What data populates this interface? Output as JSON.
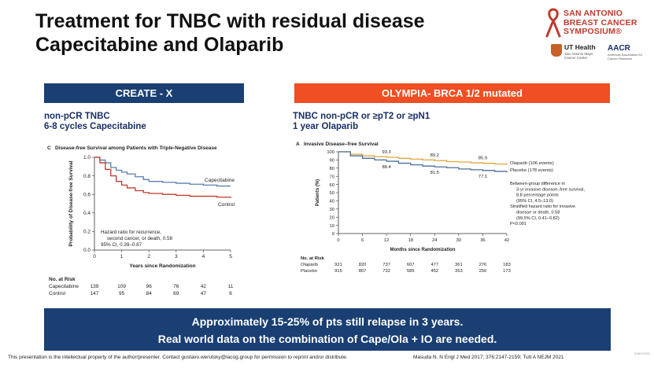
{
  "slide": {
    "title_line1": "Treatment for TNBC with residual disease",
    "title_line2": "Capecitabine and Olaparib"
  },
  "logo": {
    "line1": "SAN ANTONIO",
    "line2": "BREAST CANCER",
    "line3": "SYMPOSIUM®",
    "ut_name": "UT Health",
    "ut_sub": "San Antonio Mays Cancer Center",
    "aacr_name": "AACR",
    "aacr_sub": "American Association for Cancer Research",
    "colors": {
      "sabcs": "#c0392b",
      "ut": "#c8602a",
      "aacr": "#1b2a6b"
    }
  },
  "left_panel": {
    "header": "CREATE - X",
    "sub1": "non-pCR TNBC",
    "sub2": "6-8 cycles Capecitabine",
    "color": "#1a3f73"
  },
  "right_panel": {
    "header": "OLYMPIA- BRCA 1/2 mutated",
    "sub1": "TNBC non-pCR or ≥pT2 or ≥pN1",
    "sub2": "1 year Olaparib",
    "color": "#f04e23"
  },
  "chart_data": [
    {
      "type": "line",
      "panel_letter": "C",
      "title": "Disease-free Survival among Patients with Triple-Negative Disease",
      "xlabel": "Years since Randomization",
      "ylabel": "Probability of Disease-free Survival",
      "xlim": [
        0,
        5
      ],
      "ylim": [
        0,
        1.0
      ],
      "xticks": [
        "0",
        "1",
        "2",
        "3",
        "4",
        "5"
      ],
      "yticks": [
        "0.0",
        "0.2",
        "0.4",
        "0.6",
        "0.8",
        "1.0"
      ],
      "series": [
        {
          "name": "Capecitabine",
          "label": "Capecitabine",
          "color": "#5a7fae",
          "x": [
            0,
            0.2,
            0.4,
            0.6,
            0.8,
            1.0,
            1.2,
            1.5,
            1.8,
            2.0,
            2.5,
            3.0,
            3.5,
            4.0,
            4.5,
            5.0
          ],
          "y": [
            1.0,
            0.97,
            0.94,
            0.89,
            0.86,
            0.84,
            0.82,
            0.79,
            0.76,
            0.74,
            0.73,
            0.72,
            0.71,
            0.7,
            0.69,
            0.69
          ]
        },
        {
          "name": "Control",
          "label": "Control",
          "color": "#c0392b",
          "x": [
            0,
            0.2,
            0.4,
            0.6,
            0.8,
            1.0,
            1.2,
            1.5,
            1.8,
            2.0,
            2.5,
            3.0,
            3.5,
            4.0,
            4.5,
            5.0
          ],
          "y": [
            1.0,
            0.94,
            0.87,
            0.8,
            0.74,
            0.7,
            0.67,
            0.64,
            0.62,
            0.61,
            0.6,
            0.59,
            0.58,
            0.58,
            0.57,
            0.56
          ]
        }
      ],
      "annotation": [
        "Hazard ratio for recurrence,",
        "second cancer, or death, 0.58",
        "95% CI, 0.39–0.87"
      ],
      "risk_table": {
        "title": "No. at Risk",
        "rows": [
          {
            "label": "Capecitabine",
            "values": [
              "139",
              "109",
              "96",
              "76",
              "42",
              "11"
            ]
          },
          {
            "label": "Control",
            "values": [
              "147",
              "95",
              "84",
              "69",
              "47",
              "6"
            ]
          }
        ]
      }
    },
    {
      "type": "line",
      "panel_letter": "A",
      "title": "Invasive Disease–free Survival",
      "xlabel": "Months since Randomization",
      "ylabel": "Patients (%)",
      "xlim": [
        0,
        42
      ],
      "ylim": [
        0,
        100
      ],
      "xticks": [
        "0",
        "6",
        "12",
        "18",
        "24",
        "30",
        "36",
        "42"
      ],
      "yticks": [
        "0",
        "10",
        "20",
        "30",
        "40",
        "50",
        "60",
        "70",
        "80",
        "90",
        "100"
      ],
      "series": [
        {
          "name": "Olaparib",
          "label": "Olaparib (106 events)",
          "color": "#e0a63a",
          "x": [
            0,
            3,
            6,
            9,
            12,
            15,
            18,
            21,
            24,
            27,
            30,
            33,
            36,
            39,
            42
          ],
          "y": [
            100,
            97,
            95,
            94,
            93.3,
            92,
            91,
            90,
            89.2,
            88,
            87.5,
            86.5,
            85.9,
            85,
            84
          ]
        },
        {
          "name": "Placebo",
          "label": "Placebo (178 events)",
          "color": "#4a6e9b",
          "x": [
            0,
            3,
            6,
            9,
            12,
            15,
            18,
            21,
            24,
            27,
            30,
            33,
            36,
            39,
            42
          ],
          "y": [
            100,
            95,
            92,
            90,
            88.4,
            86,
            84,
            82.5,
            81.5,
            80.5,
            79,
            78,
            77.1,
            76,
            75
          ]
        }
      ],
      "data_labels": [
        {
          "series": "Olaparib",
          "x": 12,
          "label": "93.3"
        },
        {
          "series": "Olaparib",
          "x": 24,
          "label": "89.2"
        },
        {
          "series": "Olaparib",
          "x": 36,
          "label": "85.9"
        },
        {
          "series": "Placebo",
          "x": 12,
          "label": "88.4"
        },
        {
          "series": "Placebo",
          "x": 24,
          "label": "81.5"
        },
        {
          "series": "Placebo",
          "x": 36,
          "label": "77.1"
        }
      ],
      "annotation": [
        "Between-group difference in",
        "3-yr invasive disease–free survival,",
        "8.8 percentage points",
        "(95% CI, 4.5–13.0)",
        "Stratified hazard ratio for invasive",
        "disease or death, 0.58",
        "(99.5% CI, 0.41–0.82)",
        "P<0.001"
      ],
      "risk_table": {
        "title": "No. at Risk",
        "rows": [
          {
            "label": "Olaparib",
            "values": [
              "921",
              "820",
              "737",
              "607",
              "477",
              "361",
              "276",
              "183"
            ]
          },
          {
            "label": "Placebo",
            "values": [
              "915",
              "807",
              "732",
              "585",
              "452",
              "353",
              "256",
              "173"
            ]
          }
        ]
      }
    }
  ],
  "banner": {
    "line1": "Approximately 15-25% of pts still relapse in 3 years.",
    "line2": "Real world data on the combination of Cape/Ola + IO are needed."
  },
  "footer": {
    "left": "This presentation is the intellectual property of the author/presenter. Contact gustavo.werutsky@lacog.group for permission to reprint and/or distribute.",
    "right": "Masuda N. N Engl J Med 2017; 376:2147-2159; Tutt A NEJM 2021",
    "slide_id": "SABCS2022"
  }
}
